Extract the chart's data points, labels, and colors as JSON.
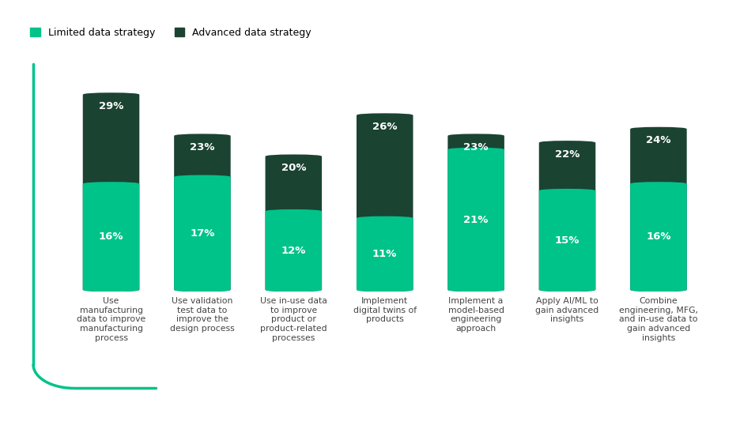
{
  "categories": [
    "Use\nmanufacturing\ndata to improve\nmanufacturing\nprocess",
    "Use validation\ntest data to\nimprove the\ndesign process",
    "Use in-use data\nto improve\nproduct or\nproduct-related\nprocesses",
    "Implement\ndigital twins of\nproducts",
    "Implement a\nmodel-based\nengineering\napproach",
    "Apply AI/ML to\ngain advanced\ninsights",
    "Combine\nengineering, MFG,\nand in-use data to\ngain advanced\ninsights"
  ],
  "limited": [
    16,
    17,
    12,
    11,
    21,
    15,
    16
  ],
  "advanced": [
    29,
    23,
    20,
    26,
    23,
    22,
    24
  ],
  "limited_color": "#00c389",
  "advanced_color": "#1b4332",
  "label_color": "#ffffff",
  "background_color": "#ffffff",
  "legend_limited_label": "Limited data strategy",
  "legend_advanced_label": "Advanced data strategy",
  "bar_width": 0.62,
  "border_color": "#00c389",
  "font_color_labels": "#444444"
}
